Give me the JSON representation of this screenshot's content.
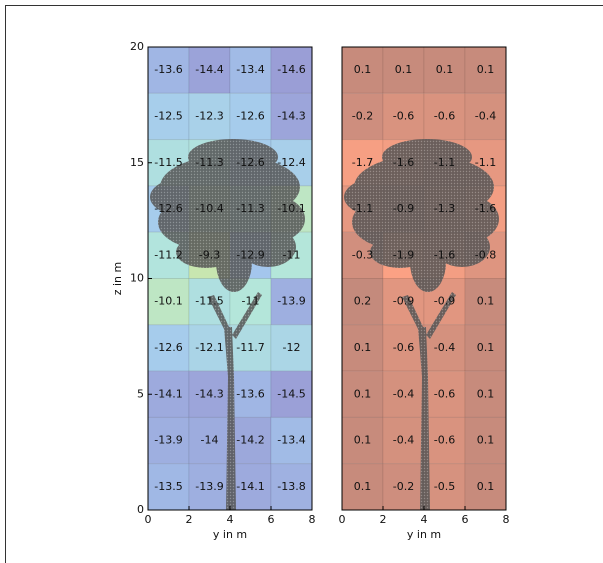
{
  "chart_data": [
    {
      "type": "heatmap",
      "xlabel": "y in m",
      "ylabel": "z in m",
      "xlim": [
        0,
        8
      ],
      "xticks": [
        0,
        2,
        4,
        6,
        8
      ],
      "ylim": [
        0,
        20
      ],
      "yticks": [
        0,
        5,
        10,
        15,
        20
      ],
      "colormap": [
        "#9a9ed6",
        "#a4c8ee",
        "#b3e6dc",
        "#c8e6b0"
      ],
      "values": [
        [
          -13.6,
          -14.4,
          -13.4,
          -14.6
        ],
        [
          -12.5,
          -12.3,
          -12.6,
          -14.3
        ],
        [
          -11.5,
          -11.3,
          -12.6,
          -12.4
        ],
        [
          -12.6,
          -10.4,
          -11.3,
          -10.1
        ],
        [
          -11.2,
          -9.3,
          -12.9,
          -11.0
        ],
        [
          -10.1,
          -11.5,
          -11.0,
          -13.9
        ],
        [
          -12.6,
          -12.1,
          -11.7,
          -12.0
        ],
        [
          -14.1,
          -14.3,
          -13.6,
          -14.5
        ],
        [
          -13.9,
          -14.0,
          -14.2,
          -13.4
        ],
        [
          -13.5,
          -13.9,
          -14.1,
          -13.8
        ]
      ]
    },
    {
      "type": "heatmap",
      "xlabel": "y in m",
      "xlim": [
        0,
        8
      ],
      "xticks": [
        0,
        2,
        4,
        6,
        8
      ],
      "colormap": [
        "#fba184",
        "#c48a7c"
      ],
      "values": [
        [
          0.1,
          0.1,
          0.1,
          0.1
        ],
        [
          -0.2,
          -0.6,
          -0.6,
          -0.4
        ],
        [
          -1.7,
          -1.6,
          -1.1,
          -1.1
        ],
        [
          -1.1,
          -0.9,
          -1.3,
          -1.6
        ],
        [
          -0.3,
          -1.9,
          -1.6,
          -0.8
        ],
        [
          0.2,
          -0.9,
          -0.9,
          0.1
        ],
        [
          0.1,
          -0.6,
          -0.4,
          0.1
        ],
        [
          0.1,
          -0.4,
          -0.6,
          0.1
        ],
        [
          0.1,
          -0.4,
          -0.6,
          0.1
        ],
        [
          0.1,
          -0.2,
          -0.5,
          0.1
        ]
      ]
    }
  ]
}
